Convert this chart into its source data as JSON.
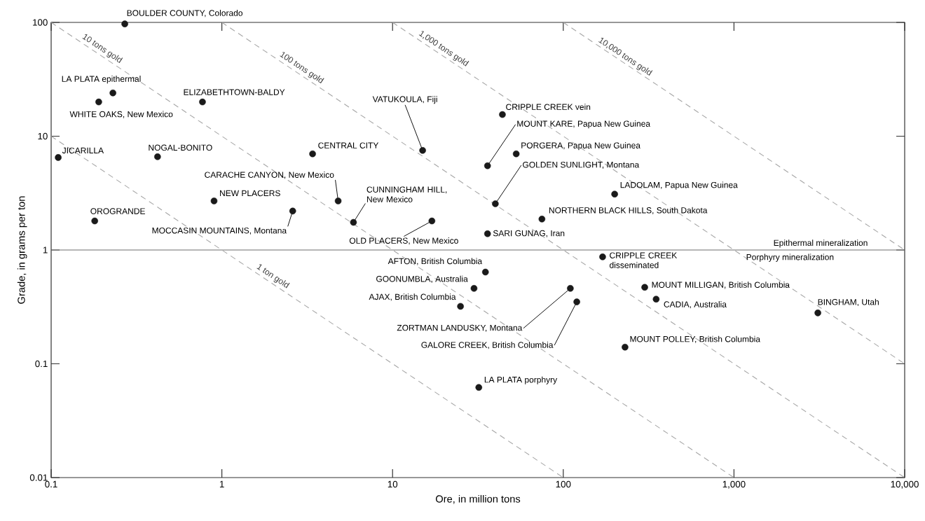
{
  "chart_data": {
    "type": "scatter",
    "xlabel": "Ore, in million tons",
    "ylabel": "Grade, in grams per ton",
    "log": "xy",
    "marker": "circle",
    "xlim": [
      0.1,
      10000
    ],
    "ylim": [
      0.01,
      100
    ],
    "xticks": [
      0.1,
      1,
      10,
      100,
      {
        "value": 1000,
        "label": "1,000"
      },
      {
        "value": 10000,
        "label": "10,000"
      }
    ],
    "yticks": [
      0.01,
      0.1,
      1,
      10,
      100
    ],
    "series": [
      {
        "color": "#1a1a1a",
        "x": [
          0.27,
          0.23,
          0.19,
          0.77,
          0.11,
          0.42,
          3.4,
          4.8,
          0.9,
          2.6,
          0.18,
          5.9,
          17,
          15,
          44,
          36,
          53,
          40,
          200,
          75,
          36,
          170,
          35,
          30,
          25,
          110,
          120,
          32,
          300,
          350,
          3100,
          230
        ],
        "values": [
          97,
          24,
          20,
          20,
          6.5,
          6.6,
          7,
          2.7,
          2.7,
          2.2,
          1.8,
          1.75,
          1.8,
          7.5,
          15.5,
          5.5,
          7,
          2.55,
          3.1,
          1.87,
          1.39,
          0.87,
          0.64,
          0.46,
          0.32,
          0.46,
          0.35,
          0.062,
          0.47,
          0.37,
          0.28,
          0.14
        ]
      },
      {
        "type": "line",
        "color": "#a6a6a6",
        "line_style": "dashed",
        "marker": "none",
        "x": [
          0.1,
          100
        ],
        "values": [
          10,
          0.01
        ]
      },
      {
        "type": "line",
        "color": "#a6a6a6",
        "line_style": "dashed",
        "marker": "none",
        "x": [
          0.1,
          1000
        ],
        "values": [
          100,
          0.01
        ]
      },
      {
        "type": "line",
        "color": "#a6a6a6",
        "line_style": "dashed",
        "marker": "none",
        "x": [
          1,
          10000
        ],
        "values": [
          100,
          0.01
        ]
      },
      {
        "type": "line",
        "color": "#a6a6a6",
        "line_style": "dashed",
        "marker": "none",
        "x": [
          10,
          10000
        ],
        "values": [
          100,
          0.1
        ]
      },
      {
        "type": "line",
        "color": "#a6a6a6",
        "line_style": "dashed",
        "marker": "none",
        "x": [
          100,
          10000
        ],
        "values": [
          100,
          1
        ]
      }
    ],
    "ref_lines": [
      {
        "axis": "y",
        "value": 1,
        "label": "Epithermal mineralization",
        "color": "#6e6e6e"
      }
    ],
    "annotations": [
      {
        "text": "BOULDER COUNTY, Colorado",
        "x": 0.27,
        "y": 97
      },
      {
        "text": "LA PLATA epithermal",
        "x": 0.23,
        "y": 24
      },
      {
        "text": "WHITE OAKS, New Mexico",
        "x": 0.19,
        "y": 20
      },
      {
        "text": "ELIZABETHTOWN-BALDY",
        "x": 0.77,
        "y": 20
      },
      {
        "text": "JICARILLA",
        "x": 0.11,
        "y": 6.5
      },
      {
        "text": "NOGAL-BONITO",
        "x": 0.42,
        "y": 6.6
      },
      {
        "text": "CENTRAL CITY",
        "x": 3.4,
        "y": 7
      },
      {
        "text": "CARACHE CANYON, New Mexico",
        "x": 4.8,
        "y": 2.7
      },
      {
        "text": "NEW PLACERS",
        "x": 0.9,
        "y": 2.7
      },
      {
        "text": "MOCCASIN MOUNTAINS, Montana",
        "x": 2.6,
        "y": 2.2
      },
      {
        "text": "OROGRANDE",
        "x": 0.18,
        "y": 1.8
      },
      {
        "text": "CUNNINGHAM HILL, New Mexico",
        "x": 5.9,
        "y": 1.75
      },
      {
        "text": "OLD PLACERS, New Mexico",
        "x": 17,
        "y": 1.8
      },
      {
        "text": "VATUKOULA, Fiji",
        "x": 15,
        "y": 7.5
      },
      {
        "text": "CRIPPLE CREEK vein",
        "x": 44,
        "y": 15.5
      },
      {
        "text": "MOUNT KARE, Papua New Guinea",
        "x": 36,
        "y": 5.5
      },
      {
        "text": "PORGERA, Papua New Guinea",
        "x": 53,
        "y": 7
      },
      {
        "text": "GOLDEN SUNLIGHT, Montana",
        "x": 40,
        "y": 2.55
      },
      {
        "text": "LADOLAM, Papua New Guinea",
        "x": 200,
        "y": 3.1
      },
      {
        "text": "NORTHERN BLACK HILLS, South Dakota",
        "x": 75,
        "y": 1.87
      },
      {
        "text": "SARI GUNAG, Iran",
        "x": 36,
        "y": 1.39
      },
      {
        "text": "CRIPPLE CREEK disseminated",
        "x": 170,
        "y": 0.87
      },
      {
        "text": "AFTON, British Columbia",
        "x": 35,
        "y": 0.64
      },
      {
        "text": "GOONUMBLA, Australia",
        "x": 30,
        "y": 0.46
      },
      {
        "text": "AJAX, British Columbia",
        "x": 25,
        "y": 0.32
      },
      {
        "text": "ZORTMAN LANDUSKY, Montana",
        "x": 110,
        "y": 0.46
      },
      {
        "text": "GALORE CREEK, British Columbia",
        "x": 120,
        "y": 0.35
      },
      {
        "text": "LA PLATA porphyry",
        "x": 32,
        "y": 0.062
      },
      {
        "text": "MOUNT MILLIGAN, British Columbia",
        "x": 300,
        "y": 0.47
      },
      {
        "text": "CADIA, Australia",
        "x": 350,
        "y": 0.37
      },
      {
        "text": "BINGHAM, Utah",
        "x": 3100,
        "y": 0.28
      },
      {
        "text": "MOUNT POLLEY, British Columbia",
        "x": 230,
        "y": 0.14
      },
      {
        "text": "1 ton gold",
        "x": 1.9,
        "y": 0.53
      },
      {
        "text": "10 tons gold",
        "x": 0.19,
        "y": 53
      },
      {
        "text": "100 tons gold",
        "x": 2.8,
        "y": 36
      },
      {
        "text": "1,000 tons gold",
        "x": 19,
        "y": 53
      },
      {
        "text": "10,000 tons gold",
        "x": 220,
        "y": 45
      },
      {
        "text": "Porphyry mineralization",
        "x": 1160,
        "y": 1
      }
    ]
  }
}
